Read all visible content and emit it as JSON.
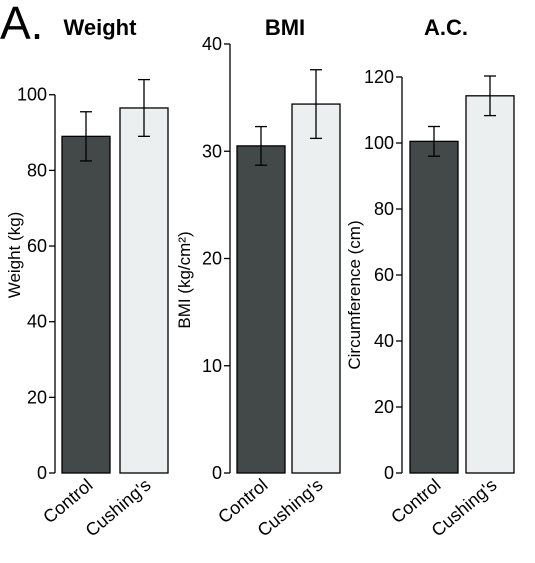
{
  "figure": {
    "panel_label": "A."
  },
  "chart_data": [
    {
      "type": "bar",
      "title": "Weight",
      "ylabel": "Weight (kg)",
      "xlabel": "",
      "categories": [
        "Control",
        "Cushing's"
      ],
      "values": [
        89,
        96.5
      ],
      "error": [
        6.5,
        7.5
      ],
      "ylim": [
        0,
        115
      ],
      "yticks": [
        0,
        20,
        40,
        60,
        80,
        100
      ],
      "grid": false,
      "colors": [
        "#434849",
        "#ecefef"
      ]
    },
    {
      "type": "bar",
      "title": "BMI",
      "ylabel": "BMI (kg/cm²)",
      "xlabel": "",
      "categories": [
        "Control",
        "Cushing's"
      ],
      "values": [
        30.5,
        34.4
      ],
      "error": [
        1.8,
        3.2
      ],
      "ylim": [
        0,
        40
      ],
      "yticks": [
        0,
        10,
        20,
        30,
        40
      ],
      "grid": false,
      "colors": [
        "#434849",
        "#ecefef"
      ]
    },
    {
      "type": "bar",
      "title": "A.C.",
      "ylabel": "Circumference (cm)",
      "xlabel": "",
      "categories": [
        "Control",
        "Cushing's"
      ],
      "values": [
        100.5,
        114.3
      ],
      "error": [
        4.5,
        6
      ],
      "ylim": [
        0,
        130
      ],
      "yticks": [
        0,
        20,
        40,
        60,
        80,
        100,
        120
      ],
      "grid": false,
      "colors": [
        "#434849",
        "#ecefef"
      ]
    }
  ]
}
